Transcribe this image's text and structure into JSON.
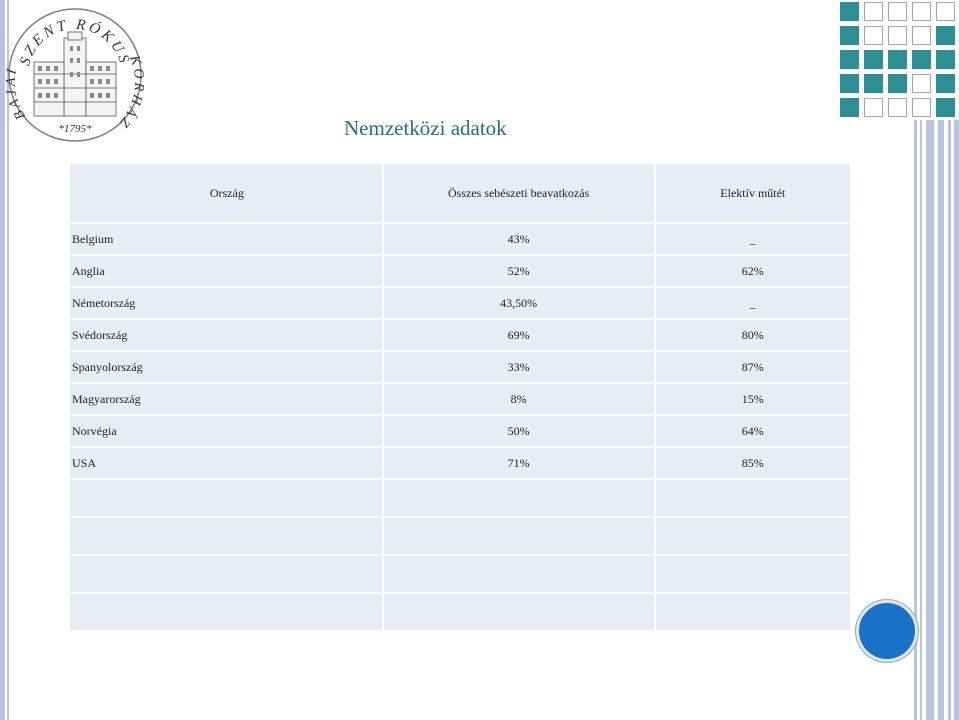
{
  "logo": {
    "top_text": "SZENT RÓKUS",
    "left_text": "BAJAI",
    "right_text": "KÓRHÁZ",
    "year": "*1795*"
  },
  "title": "Nemzetközi adatok",
  "table": {
    "headers": [
      "Ország",
      "Összes sebészeti beavatkozás",
      "Elektív műtét"
    ],
    "rows": [
      {
        "country": "Belgium",
        "total": "43%",
        "elective": "_"
      },
      {
        "country": "Anglia",
        "total": "52%",
        "elective": "62%"
      },
      {
        "country": "Németország",
        "total": "43,50%",
        "elective": "_"
      },
      {
        "country": "Svédország",
        "total": "69%",
        "elective": "80%"
      },
      {
        "country": "Spanyolország",
        "total": "33%",
        "elective": "87%"
      },
      {
        "country": "Magyarország",
        "total": "8%",
        "elective": "15%"
      },
      {
        "country": "Norvégia",
        "total": "50%",
        "elective": "64%"
      },
      {
        "country": "USA",
        "total": "71%",
        "elective": "85%"
      },
      {
        "country": "",
        "total": "",
        "elective": ""
      },
      {
        "country": "",
        "total": "",
        "elective": ""
      },
      {
        "country": "",
        "total": "",
        "elective": ""
      },
      {
        "country": "",
        "total": "",
        "elective": ""
      }
    ]
  },
  "colors": {
    "title": "#1f6e8c",
    "table_fill": "#e8ecf4",
    "accent_teal": "#2d8f94",
    "bar": "#b7c3df",
    "button": "#1a72c7"
  }
}
